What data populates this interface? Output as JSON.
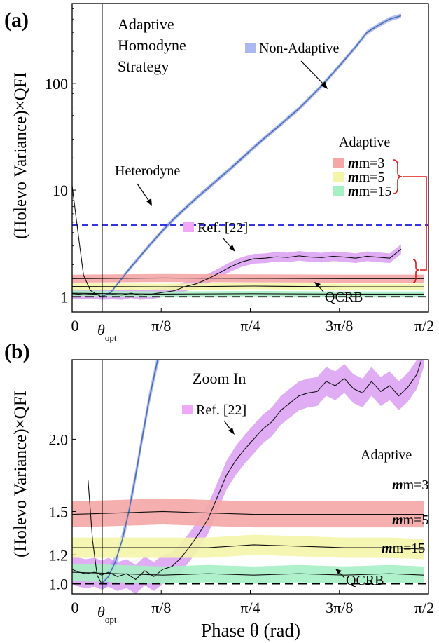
{
  "panel_a": {
    "letter": "(a)",
    "ylabel": "(Holevo Variance)×QFI",
    "yticks": [
      "1",
      "10",
      "100"
    ],
    "xticks": [
      "0",
      "π/8",
      "π/4",
      "3π/8",
      "π/2"
    ],
    "theta_opt": "θ",
    "theta_opt_sub": "opt",
    "strategy_text": [
      "Adaptive",
      "Homodyne",
      "Strategy"
    ],
    "nonadaptive_label": "Non-Adaptive",
    "heterodyne_label": "Heterodyne",
    "ref_label": "Ref. [22]",
    "adaptive_title": "Adaptive",
    "m_labels": [
      "m=3",
      "m=5",
      "m=15"
    ],
    "qcrb_label": "QCRB"
  },
  "panel_b": {
    "letter": "(b)",
    "ylabel": "(Holevo Variance)×QFI",
    "yticks": [
      "1.0",
      "1.2",
      "1.5",
      "2.0"
    ],
    "xticks": [
      "0",
      "π/8",
      "π/4",
      "3π/8",
      "π/2"
    ],
    "theta_opt": "θ",
    "theta_opt_sub": "opt",
    "zoom_label": "Zoom In",
    "ref_label": "Ref. [22]",
    "adaptive_title": "Adaptive",
    "m_labels": [
      "m=3",
      "m=5",
      "m=15"
    ],
    "qcrb_label": "QCRB",
    "xlabel": "Phase θ (rad)"
  },
  "colors": {
    "nonadaptive": "#4a6db5",
    "nonadaptive_band": "#aab8ee",
    "heterodyne": "#1a1adb",
    "ref": "#cc77ee",
    "m3": "#f5a6a6",
    "m5": "#f4f5a8",
    "m15": "#a6f0c4",
    "bracket": "#e01818"
  },
  "chart_data": [
    {
      "panel": "a",
      "type": "line",
      "y_scale": "log",
      "xlim": [
        0,
        1.5708
      ],
      "ylim": [
        0.72,
        560
      ],
      "theta_opt": 0.13,
      "series": [
        {
          "name": "Non-Adaptive",
          "x": [
            0.13,
            0.17,
            0.21,
            0.25,
            0.3,
            0.35,
            0.4,
            0.45,
            0.5,
            0.55,
            0.6,
            0.65,
            0.7,
            0.75,
            0.8,
            0.85,
            0.9,
            0.95,
            1.0,
            1.05,
            1.1,
            1.15,
            1.2,
            1.25,
            1.3,
            1.35,
            1.4,
            1.45
          ],
          "y": [
            1.0,
            1.1,
            1.4,
            1.8,
            2.4,
            3.2,
            4.2,
            5.4,
            6.8,
            8.5,
            10.5,
            13,
            16,
            20,
            25,
            31,
            38,
            47,
            58,
            74,
            95,
            125,
            165,
            220,
            300,
            350,
            400,
            430
          ]
        },
        {
          "name": "Ref. [22]",
          "x": [
            0.0,
            0.05,
            0.1,
            0.13,
            0.18,
            0.22,
            0.26,
            0.3,
            0.35,
            0.4,
            0.45,
            0.5,
            0.55,
            0.6,
            0.65,
            0.7,
            0.75,
            0.8,
            0.85,
            0.9,
            0.95,
            1.0,
            1.05,
            1.1,
            1.15,
            1.2,
            1.25,
            1.3,
            1.35,
            1.4,
            1.45
          ],
          "y": [
            1.07,
            1.05,
            1.06,
            1.04,
            1.05,
            1.04,
            1.08,
            1.04,
            1.06,
            1.1,
            1.14,
            1.25,
            1.33,
            1.48,
            1.68,
            1.92,
            2.13,
            2.27,
            2.3,
            2.37,
            2.34,
            2.42,
            2.36,
            2.33,
            2.4,
            2.36,
            2.3,
            2.4,
            2.35,
            2.3,
            2.8
          ]
        },
        {
          "name": "m=3",
          "x": [
            0.0,
            0.4,
            0.8,
            1.2,
            1.55
          ],
          "y": [
            1.48,
            1.5,
            1.49,
            1.48,
            1.48
          ]
        },
        {
          "name": "m=5",
          "x": [
            0.0,
            0.4,
            0.8,
            1.2,
            1.55
          ],
          "y": [
            1.25,
            1.24,
            1.26,
            1.24,
            1.24
          ]
        },
        {
          "name": "m=15",
          "x": [
            0.0,
            0.4,
            0.8,
            1.2,
            1.55
          ],
          "y": [
            1.08,
            1.06,
            1.07,
            1.06,
            1.06
          ]
        },
        {
          "name": "Heterodyne",
          "x": [
            0.0,
            1.5708
          ],
          "y": [
            4.7,
            4.7
          ]
        },
        {
          "name": "QCRB",
          "x": [
            0.0,
            1.5708
          ],
          "y": [
            1.0,
            1.0
          ]
        },
        {
          "x": [
            0.0,
            0.02,
            0.05,
            0.08,
            0.11,
            0.13
          ],
          "y": [
            11,
            5.0,
            1.6,
            1.15,
            1.05,
            1.0
          ]
        }
      ]
    },
    {
      "panel": "b",
      "type": "line",
      "xlim": [
        0,
        1.5708
      ],
      "ylim": [
        0.93,
        2.55
      ],
      "xlabel": "Phase θ (rad)",
      "theta_opt": 0.13,
      "series": [
        {
          "name": "Non-Adaptive",
          "x": [
            0.13,
            0.16,
            0.19,
            0.22,
            0.25,
            0.28,
            0.31,
            0.34,
            0.37,
            0.4
          ],
          "y": [
            1.0,
            1.05,
            1.15,
            1.3,
            1.5,
            1.75,
            2.02,
            2.28,
            2.5,
            2.7
          ]
        },
        {
          "name": "Ref. [22]",
          "x": [
            0.0,
            0.03,
            0.06,
            0.1,
            0.13,
            0.16,
            0.2,
            0.24,
            0.28,
            0.32,
            0.36,
            0.4,
            0.44,
            0.48,
            0.52,
            0.56,
            0.6,
            0.64,
            0.68,
            0.72,
            0.76,
            0.8,
            0.84,
            0.88,
            0.92,
            0.96,
            1.0,
            1.04,
            1.08,
            1.12,
            1.16,
            1.2,
            1.24,
            1.28,
            1.32,
            1.36,
            1.4,
            1.44,
            1.48,
            1.52,
            1.55
          ],
          "y": [
            1.1,
            1.08,
            1.07,
            1.08,
            1.06,
            1.08,
            1.05,
            1.07,
            1.03,
            1.09,
            1.05,
            1.1,
            1.12,
            1.18,
            1.26,
            1.35,
            1.45,
            1.6,
            1.75,
            1.85,
            1.93,
            2.0,
            2.07,
            2.12,
            2.2,
            2.25,
            2.3,
            2.32,
            2.33,
            2.4,
            2.37,
            2.42,
            2.35,
            2.32,
            2.4,
            2.33,
            2.37,
            2.3,
            2.36,
            2.45,
            2.6
          ]
        },
        {
          "name": "m=3",
          "x": [
            0.0,
            0.2,
            0.4,
            0.6,
            0.8,
            1.0,
            1.2,
            1.4,
            1.55
          ],
          "y": [
            1.48,
            1.49,
            1.5,
            1.49,
            1.48,
            1.48,
            1.48,
            1.48,
            1.48
          ]
        },
        {
          "name": "m=5",
          "x": [
            0.0,
            0.2,
            0.4,
            0.6,
            0.8,
            1.0,
            1.2,
            1.4,
            1.55
          ],
          "y": [
            1.25,
            1.25,
            1.25,
            1.25,
            1.27,
            1.26,
            1.25,
            1.25,
            1.24
          ]
        },
        {
          "name": "m=15",
          "x": [
            0.0,
            0.2,
            0.4,
            0.6,
            0.8,
            1.0,
            1.2,
            1.4,
            1.55
          ],
          "y": [
            1.08,
            1.07,
            1.06,
            1.07,
            1.06,
            1.07,
            1.06,
            1.07,
            1.06
          ]
        },
        {
          "name": "QCRB",
          "x": [
            0.0,
            1.5708
          ],
          "y": [
            1.0,
            1.0
          ]
        },
        {
          "x": [
            0.07,
            0.09,
            0.11,
            0.13
          ],
          "y": [
            1.72,
            1.3,
            1.06,
            1.0
          ]
        }
      ]
    }
  ]
}
